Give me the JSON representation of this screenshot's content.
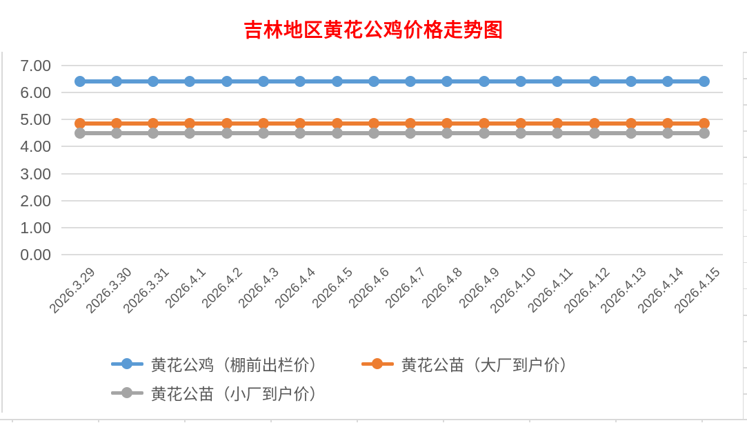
{
  "title": {
    "text": "吉林地区黄花公鸡价格走势图",
    "color": "#FF0000"
  },
  "chart_data": {
    "type": "line",
    "title": "吉林地区黄花公鸡价格走势图",
    "categories": [
      "2026.3.29",
      "2026.3.30",
      "2026.3.31",
      "2026.4.1",
      "2026.4.2",
      "2026.4.3",
      "2026.4.4",
      "2026.4.5",
      "2026.4.6",
      "2026.4.7",
      "2026.4.8",
      "2026.4.9",
      "2026.4.10",
      "2026.4.11",
      "2026.4.12",
      "2026.4.13",
      "2026.4.14",
      "2026.4.15"
    ],
    "series": [
      {
        "name": "黄花公鸡（棚前出栏价）",
        "color": "#5B9BD5",
        "values": [
          6.4,
          6.4,
          6.4,
          6.4,
          6.4,
          6.4,
          6.4,
          6.4,
          6.4,
          6.4,
          6.4,
          6.4,
          6.4,
          6.4,
          6.4,
          6.4,
          6.4,
          6.4
        ]
      },
      {
        "name": "黄花公苗（大厂到户价）",
        "color": "#ED7D31",
        "values": [
          4.85,
          4.85,
          4.85,
          4.85,
          4.85,
          4.85,
          4.85,
          4.85,
          4.85,
          4.85,
          4.85,
          4.85,
          4.85,
          4.85,
          4.85,
          4.85,
          4.85,
          4.85
        ]
      },
      {
        "name": "黄花公苗（小厂到户价）",
        "color": "#A5A5A5",
        "values": [
          4.5,
          4.5,
          4.5,
          4.5,
          4.5,
          4.5,
          4.5,
          4.5,
          4.5,
          4.5,
          4.5,
          4.5,
          4.5,
          4.5,
          4.5,
          4.5,
          4.5,
          4.5
        ]
      }
    ],
    "xlabel": "",
    "ylabel": "",
    "ylim": [
      0,
      7
    ],
    "ytick_step": 1,
    "ytick_labels": [
      "0.00",
      "1.00",
      "2.00",
      "3.00",
      "4.00",
      "5.00",
      "6.00",
      "7.00"
    ],
    "grid": true,
    "legend_position": "bottom",
    "marker": "circle"
  },
  "colors": {
    "title": "#FF0000",
    "axis_text": "#595959",
    "gridline": "#DCDCDC",
    "frame": "#D9D9D9",
    "series_blue": "#5B9BD5",
    "series_orange": "#ED7D31",
    "series_gray": "#A5A5A5"
  }
}
